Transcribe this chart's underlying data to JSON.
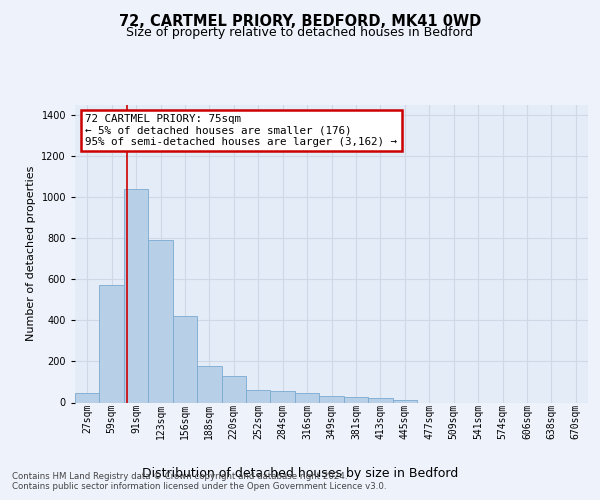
{
  "title_line1": "72, CARTMEL PRIORY, BEDFORD, MK41 0WD",
  "title_line2": "Size of property relative to detached houses in Bedford",
  "xlabel": "Distribution of detached houses by size in Bedford",
  "ylabel": "Number of detached properties",
  "bar_values": [
    45,
    575,
    1040,
    790,
    420,
    180,
    130,
    60,
    55,
    45,
    30,
    28,
    20,
    12,
    0,
    0,
    0,
    0,
    0,
    0,
    0
  ],
  "bar_labels": [
    "27sqm",
    "59sqm",
    "91sqm",
    "123sqm",
    "156sqm",
    "188sqm",
    "220sqm",
    "252sqm",
    "284sqm",
    "316sqm",
    "349sqm",
    "381sqm",
    "413sqm",
    "445sqm",
    "477sqm",
    "509sqm",
    "541sqm",
    "574sqm",
    "606sqm",
    "638sqm",
    "670sqm"
  ],
  "bar_color": "#b8cfe8",
  "bar_edge_color": "#7aaad0",
  "bar_edge_width": 0.6,
  "red_line_x": 1.62,
  "ylim": [
    0,
    1450
  ],
  "yticks": [
    0,
    200,
    400,
    600,
    800,
    1000,
    1200,
    1400
  ],
  "annotation_text": "72 CARTMEL PRIORY: 75sqm\n← 5% of detached houses are smaller (176)\n95% of semi-detached houses are larger (3,162) →",
  "annotation_box_color": "#ffffff",
  "annotation_border_color": "#cc0000",
  "footer_line1": "Contains HM Land Registry data © Crown copyright and database right 2024.",
  "footer_line2": "Contains public sector information licensed under the Open Government Licence v3.0.",
  "background_color": "#eef2fb",
  "plot_background": "#e4ecf7",
  "grid_color": "#d0d8e8",
  "red_line_color": "#cc0000",
  "title1_fontsize": 10.5,
  "title2_fontsize": 9,
  "ylabel_fontsize": 8,
  "xlabel_fontsize": 9,
  "tick_fontsize": 7,
  "annot_fontsize": 7.8
}
